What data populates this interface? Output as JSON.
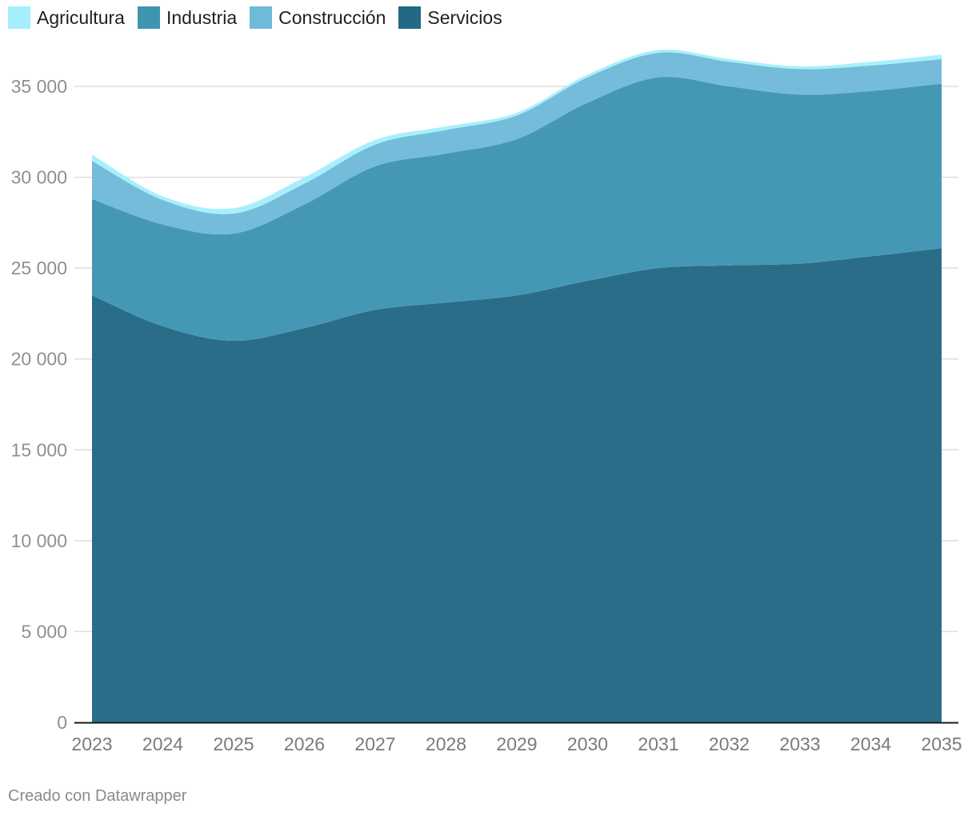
{
  "footer": "Creado con Datawrapper",
  "chart_data": {
    "type": "area",
    "stacked": true,
    "title": "",
    "xlabel": "",
    "ylabel": "",
    "ylim": [
      0,
      37000
    ],
    "grid": true,
    "legend_position": "top-left",
    "x": [
      "2023",
      "2024",
      "2025",
      "2026",
      "2027",
      "2028",
      "2029",
      "2030",
      "2031",
      "2032",
      "2033",
      "2034",
      "2035"
    ],
    "y_ticks": [
      {
        "value": 0,
        "label": "0"
      },
      {
        "value": 5000,
        "label": "5 000"
      },
      {
        "value": 10000,
        "label": "10 000"
      },
      {
        "value": 15000,
        "label": "15 000"
      },
      {
        "value": 20000,
        "label": "20 000"
      },
      {
        "value": 25000,
        "label": "25 000"
      },
      {
        "value": 30000,
        "label": "30 000"
      },
      {
        "value": 35000,
        "label": "35 000"
      }
    ],
    "series": [
      {
        "name": "Servicios",
        "color": "#236884",
        "values": [
          23500,
          21800,
          21000,
          21700,
          22700,
          23100,
          23500,
          24300,
          25000,
          25150,
          25250,
          25650,
          26100
        ]
      },
      {
        "name": "Industria",
        "color": "#3f95b1",
        "values": [
          5300,
          5600,
          5900,
          6800,
          7900,
          8200,
          8600,
          9800,
          10500,
          9850,
          9300,
          9100,
          9050
        ]
      },
      {
        "name": "Construcción",
        "color": "#70bad9",
        "values": [
          2100,
          1350,
          1100,
          1150,
          1200,
          1300,
          1300,
          1400,
          1350,
          1350,
          1400,
          1400,
          1350
        ]
      },
      {
        "name": "Agricultura",
        "color": "#a5eefd",
        "values": [
          350,
          200,
          300,
          350,
          250,
          200,
          150,
          150,
          150,
          150,
          150,
          200,
          250
        ]
      }
    ],
    "legend_order": [
      "Agricultura",
      "Industria",
      "Construcción",
      "Servicios"
    ]
  }
}
